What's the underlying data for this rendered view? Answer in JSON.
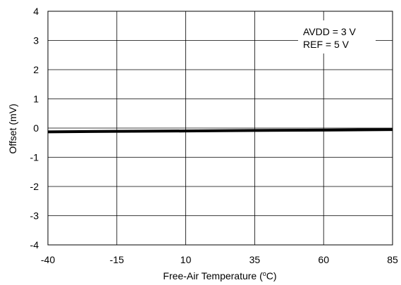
{
  "chart_data": {
    "type": "line",
    "xlabel": "Free-Air Temperature (°C)",
    "ylabel": "Offset (mV)",
    "xlim": [
      -40,
      85
    ],
    "ylim": [
      -4,
      4
    ],
    "x_ticks": [
      -40,
      -15,
      10,
      35,
      60,
      85
    ],
    "y_ticks": [
      4,
      3,
      2,
      1,
      0,
      -1,
      -2,
      -3,
      -4
    ],
    "x_tick_labels": [
      "-40",
      "-15",
      "10",
      "35",
      "60",
      "85"
    ],
    "y_tick_labels": [
      "4",
      "3",
      "2",
      "1",
      "0",
      "-1",
      "-2",
      "-3",
      "-4"
    ],
    "grid": true,
    "annotation": [
      "AVDD = 3 V",
      "REF = 5 V"
    ],
    "series": [
      {
        "x": [
          -40,
          -15,
          10,
          35,
          60,
          85
        ],
        "y": [
          -0.13,
          -0.11,
          -0.1,
          -0.08,
          -0.07,
          -0.05
        ]
      }
    ]
  },
  "colors": {
    "line": "#000000",
    "grid": "#000000",
    "background": "#ffffff"
  }
}
